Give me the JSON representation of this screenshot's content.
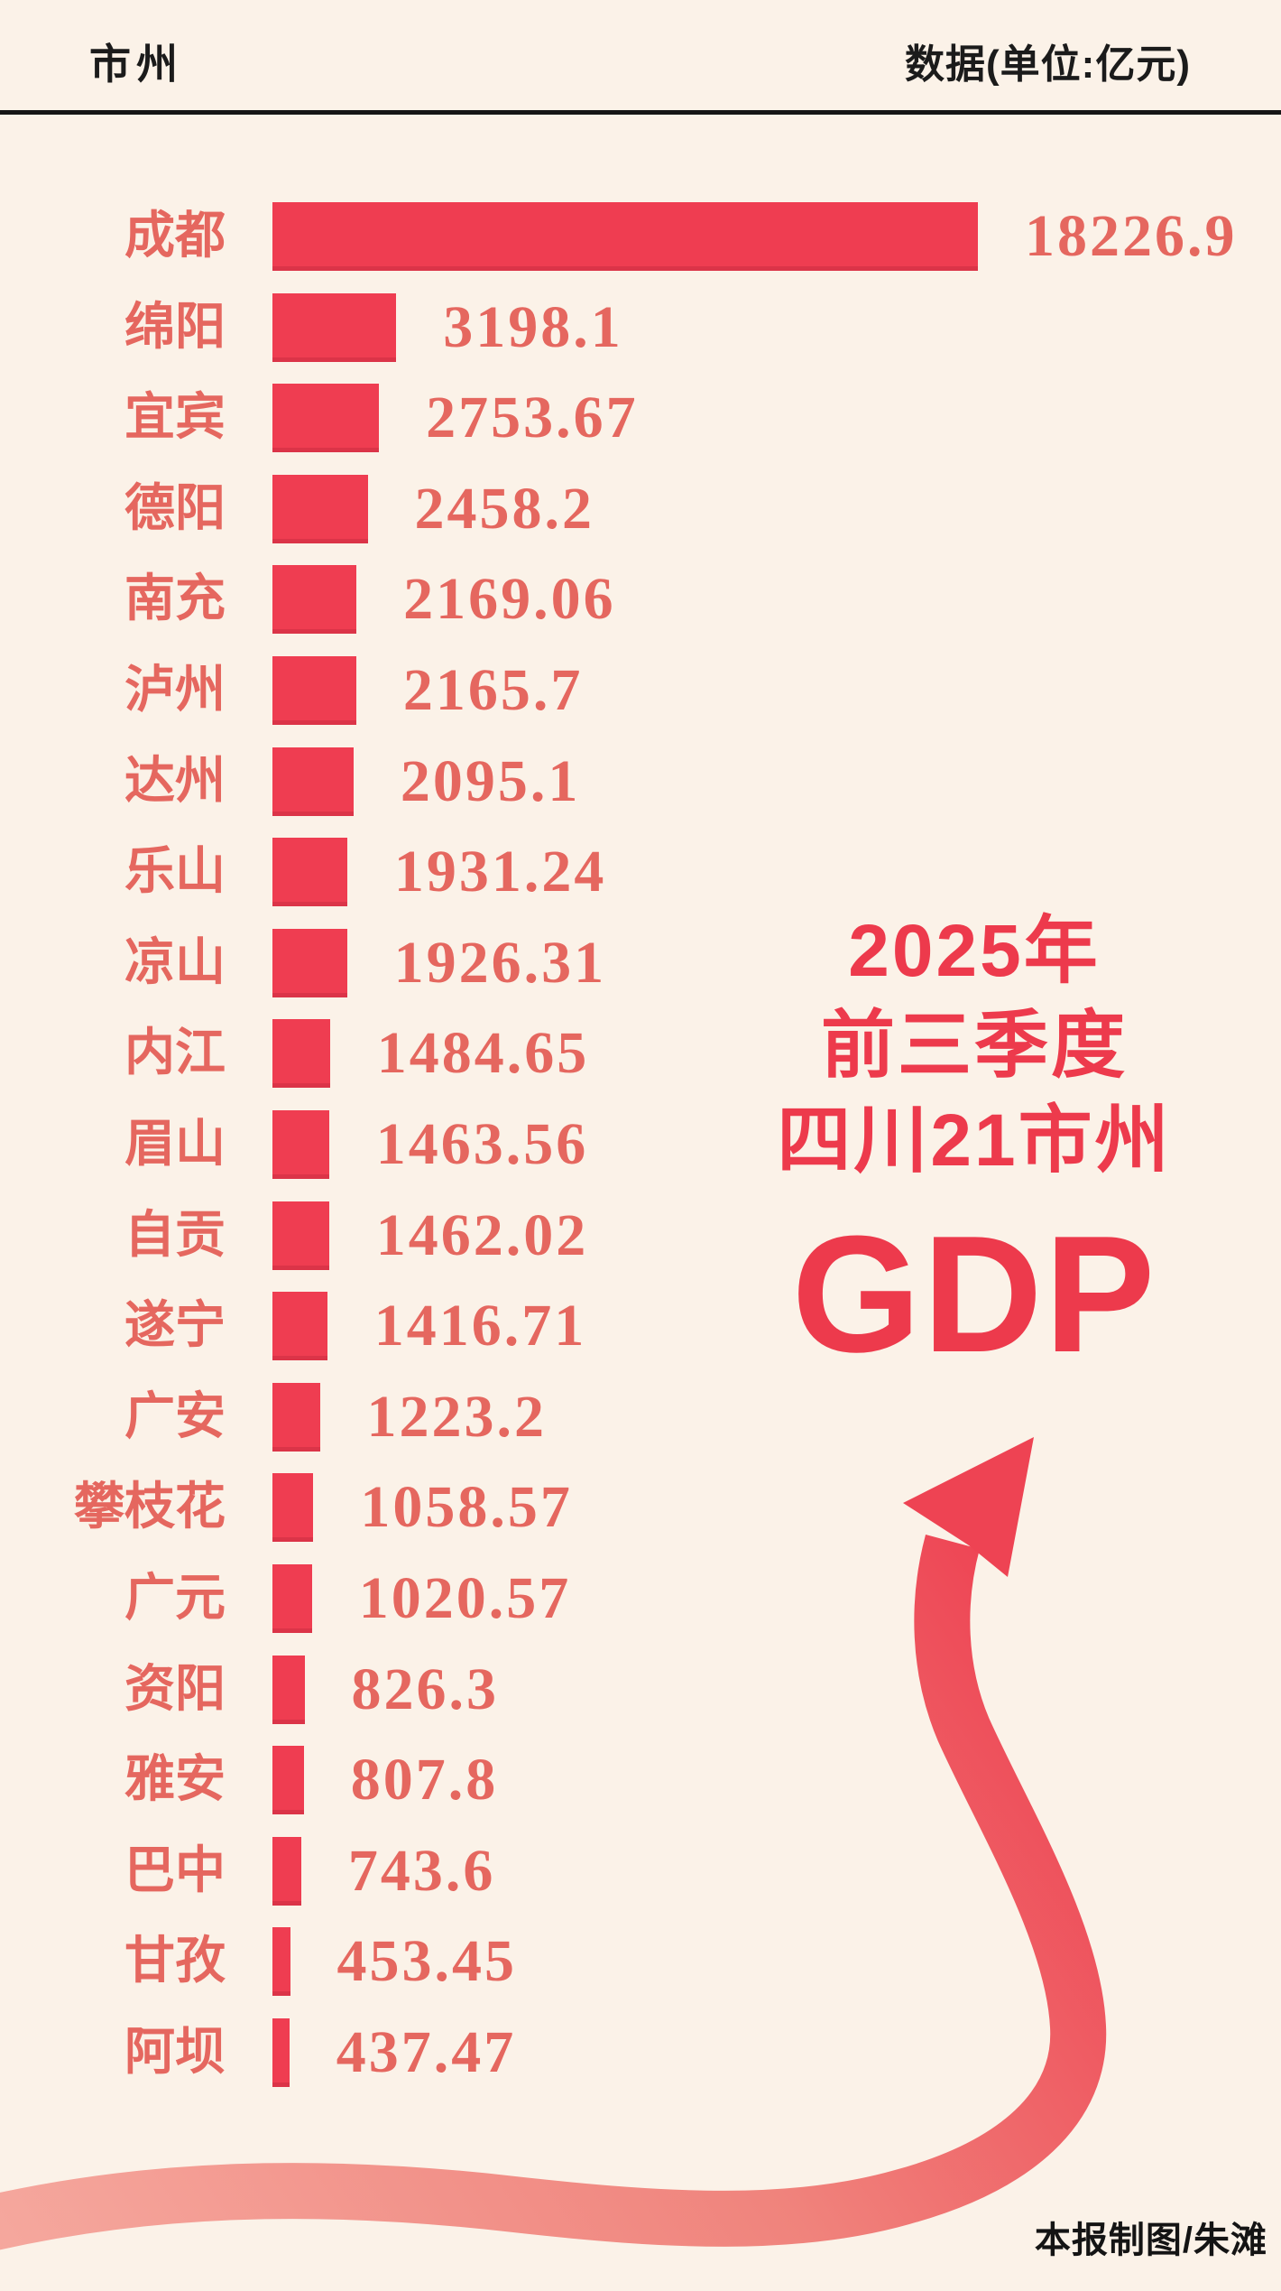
{
  "page": {
    "background": "#fbf2e8"
  },
  "header": {
    "left_label": "市州",
    "right_label": "数据(单位:亿元)"
  },
  "chart_data": {
    "type": "bar",
    "orientation": "horizontal",
    "unit": "亿元",
    "bar_color": "#ef3d51",
    "text_color": "#e5675f",
    "xlim": [
      0,
      18226.9
    ],
    "categories": [
      "成都",
      "绵阳",
      "宜宾",
      "德阳",
      "南充",
      "泸州",
      "达州",
      "乐山",
      "凉山",
      "内江",
      "眉山",
      "自贡",
      "遂宁",
      "广安",
      "攀枝花",
      "广元",
      "资阳",
      "雅安",
      "巴中",
      "甘孜",
      "阿坝"
    ],
    "values": [
      18226.9,
      3198.1,
      2753.67,
      2458.2,
      2169.06,
      2165.7,
      2095.1,
      1931.24,
      1926.31,
      1484.65,
      1463.56,
      1462.02,
      1416.71,
      1223.2,
      1058.57,
      1020.57,
      826.3,
      807.8,
      743.6,
      453.45,
      437.47
    ],
    "rows": [
      {
        "label": "成都",
        "value": "18226.9"
      },
      {
        "label": "绵阳",
        "value": "3198.1"
      },
      {
        "label": "宜宾",
        "value": "2753.67"
      },
      {
        "label": "德阳",
        "value": "2458.2"
      },
      {
        "label": "南充",
        "value": "2169.06"
      },
      {
        "label": "泸州",
        "value": "2165.7"
      },
      {
        "label": "达州",
        "value": "2095.1"
      },
      {
        "label": "乐山",
        "value": "1931.24"
      },
      {
        "label": "凉山",
        "value": "1926.31"
      },
      {
        "label": "内江",
        "value": "1484.65"
      },
      {
        "label": "眉山",
        "value": "1463.56"
      },
      {
        "label": "自贡",
        "value": "1462.02"
      },
      {
        "label": "遂宁",
        "value": "1416.71"
      },
      {
        "label": "广安",
        "value": "1223.2"
      },
      {
        "label": "攀枝花",
        "value": "1058.57"
      },
      {
        "label": "广元",
        "value": "1020.57"
      },
      {
        "label": "资阳",
        "value": "826.3"
      },
      {
        "label": "雅安",
        "value": "807.8"
      },
      {
        "label": "巴中",
        "value": "743.6"
      },
      {
        "label": "甘孜",
        "value": "453.45"
      },
      {
        "label": "阿坝",
        "value": "437.47"
      }
    ]
  },
  "title": {
    "lines": [
      "2025年",
      "前三季度",
      "四川21市州"
    ],
    "big": "GDP",
    "color": "#ed3a4c"
  },
  "arrow": {
    "tail_color": "#f5a79d",
    "mid_color": "#f0837c",
    "head_color": "#ee4353"
  },
  "credit": "本报制图/朱滩"
}
